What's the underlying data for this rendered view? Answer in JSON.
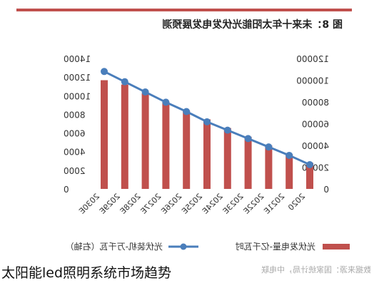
{
  "caption": "太阳能led照明系统市场趋势",
  "chart_data": {
    "type": "bar",
    "title": "图 8：未来十年太阳能光伏发电发展预测",
    "categories": [
      "2020",
      "2021E",
      "2022E",
      "2023E",
      "2024E",
      "2025E",
      "2026E",
      "2027E",
      "2028E",
      "2029E",
      "2030E"
    ],
    "series": [
      {
        "name": "光伏发电量-亿千瓦时",
        "type": "bar",
        "axis": "left",
        "color": "#c0504d",
        "values": [
          24000,
          32000,
          40000,
          48000,
          56000,
          64000,
          72000,
          80000,
          88000,
          96000,
          100000
        ]
      },
      {
        "name": "光伏装机-万千瓦（右轴）",
        "type": "line",
        "axis": "right",
        "color": "#4a7ebb",
        "values": [
          2600,
          3600,
          4500,
          5400,
          6300,
          7200,
          8300,
          9300,
          10400,
          11500,
          12600
        ]
      }
    ],
    "y_left": {
      "ylim": [
        0,
        120000
      ],
      "ticks": [
        "0",
        "20000",
        "40000",
        "60000",
        "80000",
        "100000",
        "120000"
      ]
    },
    "y_right": {
      "ylim": [
        0,
        14000
      ],
      "ticks": [
        "0",
        "2000",
        "4000",
        "6000",
        "8000",
        "10000",
        "12000",
        "14000"
      ]
    },
    "grid": false,
    "legend_position": "bottom"
  },
  "source_note": "数据来源：国家统计局，中电联"
}
